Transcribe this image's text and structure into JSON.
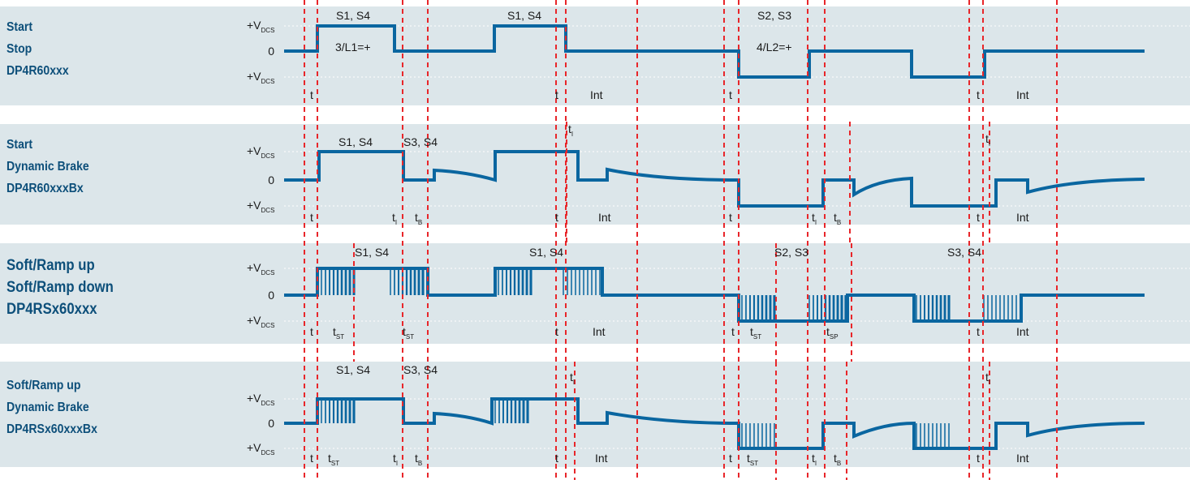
{
  "rows": [
    {
      "lines": [
        "Start",
        "Stop",
        "DP4R60xxx"
      ]
    },
    {
      "lines": [
        "Start",
        "Dynamic Brake",
        "DP4R60xxxBx"
      ]
    },
    {
      "lines": [
        "Soft/Ramp up",
        "Soft/Ramp down",
        "DP4RSx60xxx"
      ]
    },
    {
      "lines": [
        "Soft/Ramp up",
        "Dynamic Brake",
        "DP4RSx60xxxBx"
      ]
    }
  ],
  "axis": {
    "top_main": "+V",
    "top_sub": "DCS",
    "zero": "0",
    "bot_main": "+V",
    "bot_sub": "DCS"
  },
  "annotations": {
    "s14": "S1, S4",
    "s23": "S2, S3",
    "s34": "S3, S4",
    "l1": "3/L1=+",
    "l2": "4/L2=+",
    "t": "t",
    "int": "Int",
    "t_I_main": "t",
    "t_I_sub": "I",
    "t_B_main": "t",
    "t_B_sub": "B",
    "t_ST_main": "t",
    "t_ST_sub": "ST",
    "t_SP_main": "t",
    "t_SP_sub": "SP"
  },
  "colors": {
    "band": "#dce6ea",
    "signal": "#0a66a0",
    "marker": "#e8262a",
    "label": "#0d4f7a"
  }
}
